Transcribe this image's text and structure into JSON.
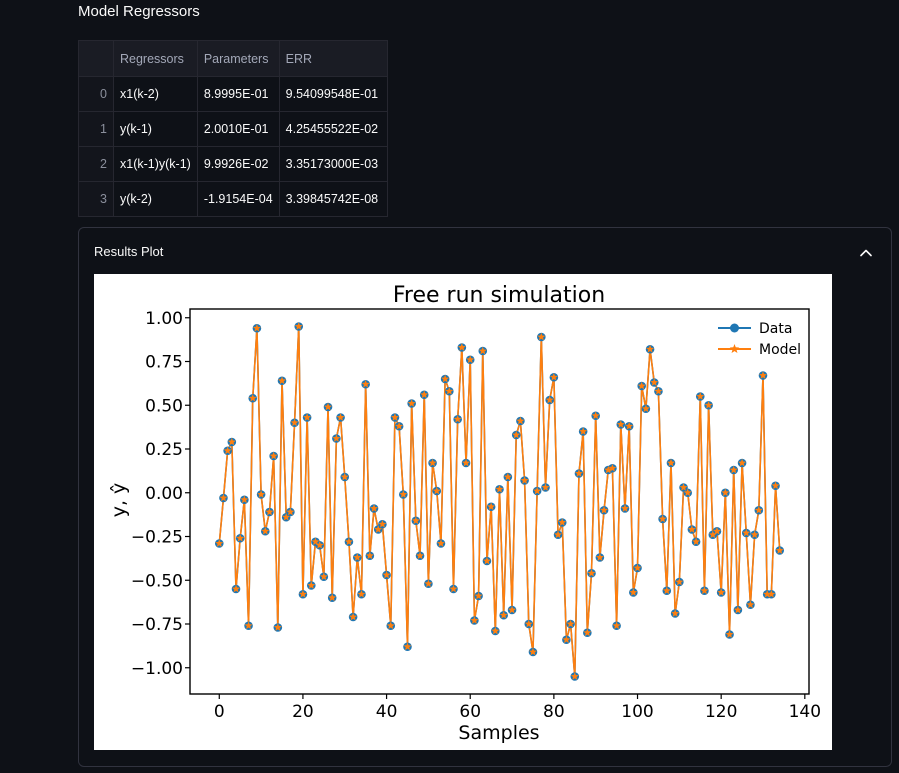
{
  "section_title": "Model Regressors",
  "table": {
    "columns": [
      "",
      "Regressors",
      "Parameters",
      "ERR"
    ],
    "rows": [
      {
        "index": "0",
        "regressor": "x1(k-2)",
        "parameter": "8.9995E-01",
        "err": "9.54099548E-01"
      },
      {
        "index": "1",
        "regressor": "y(k-1)",
        "parameter": "2.0010E-01",
        "err": "4.25455522E-02"
      },
      {
        "index": "2",
        "regressor": "x1(k-1)y(k-1)",
        "parameter": "9.9926E-02",
        "err": "3.35173000E-03"
      },
      {
        "index": "3",
        "regressor": "y(k-2)",
        "parameter": "-1.9154E-04",
        "err": "3.39845742E-08"
      }
    ]
  },
  "expander": {
    "label": "Results Plot",
    "expanded": true,
    "chevron_icon": "chevron-up-icon"
  },
  "chart_data": {
    "type": "line",
    "title": "Free run simulation",
    "xlabel": "Samples",
    "ylabel": "y, ŷ",
    "xlim": [
      -7,
      141
    ],
    "ylim": [
      -1.15,
      1.05
    ],
    "xticks": [
      0,
      20,
      40,
      60,
      80,
      100,
      120,
      140
    ],
    "yticks": [
      1.0,
      0.75,
      0.5,
      0.25,
      0.0,
      -0.25,
      -0.5,
      -0.75,
      -1.0
    ],
    "ytick_labels": [
      "1.00",
      "0.75",
      "0.50",
      "0.25",
      "0.00",
      "−0.25",
      "−0.50",
      "−0.75",
      "−1.00"
    ],
    "grid": false,
    "legend": "top-right",
    "x_start": 0,
    "series": [
      {
        "name": "Data",
        "color": "#1f77b4",
        "marker": "circle"
      },
      {
        "name": "Model",
        "color": "#ff7f0e",
        "marker": "star"
      }
    ],
    "values": [
      -0.29,
      -0.03,
      0.24,
      0.29,
      -0.55,
      -0.26,
      -0.04,
      -0.76,
      0.54,
      0.94,
      -0.01,
      -0.22,
      -0.11,
      0.21,
      -0.77,
      0.64,
      -0.14,
      -0.11,
      0.4,
      0.95,
      -0.58,
      0.43,
      -0.53,
      -0.28,
      -0.3,
      -0.48,
      0.49,
      -0.6,
      0.31,
      0.43,
      0.09,
      -0.28,
      -0.71,
      -0.37,
      -0.58,
      0.62,
      -0.36,
      -0.09,
      -0.21,
      -0.18,
      -0.47,
      -0.76,
      0.43,
      0.38,
      -0.01,
      -0.88,
      0.51,
      -0.16,
      -0.36,
      0.56,
      -0.52,
      0.17,
      0.01,
      -0.29,
      0.65,
      0.58,
      -0.55,
      0.42,
      0.83,
      0.17,
      0.76,
      -0.73,
      -0.59,
      0.81,
      -0.39,
      -0.08,
      -0.79,
      0.02,
      -0.7,
      0.09,
      -0.67,
      0.33,
      0.41,
      0.07,
      -0.75,
      -0.91,
      0.01,
      0.89,
      0.03,
      0.53,
      0.66,
      -0.24,
      -0.17,
      -0.84,
      -0.75,
      -1.05,
      0.11,
      0.35,
      -0.8,
      -0.46,
      0.44,
      -0.37,
      -0.1,
      0.13,
      0.14,
      -0.76,
      0.39,
      -0.09,
      0.38,
      -0.57,
      -0.43,
      0.61,
      0.48,
      0.82,
      0.63,
      0.58,
      -0.15,
      -0.56,
      0.17,
      -0.69,
      -0.51,
      0.03,
      0.0,
      -0.21,
      -0.28,
      0.55,
      -0.56,
      0.5,
      -0.24,
      -0.22,
      -0.57,
      0.0,
      -0.81,
      0.13,
      -0.67,
      0.17,
      -0.23,
      -0.64,
      -0.24,
      -0.1,
      0.67,
      -0.58,
      -0.58,
      0.04,
      -0.33
    ]
  }
}
